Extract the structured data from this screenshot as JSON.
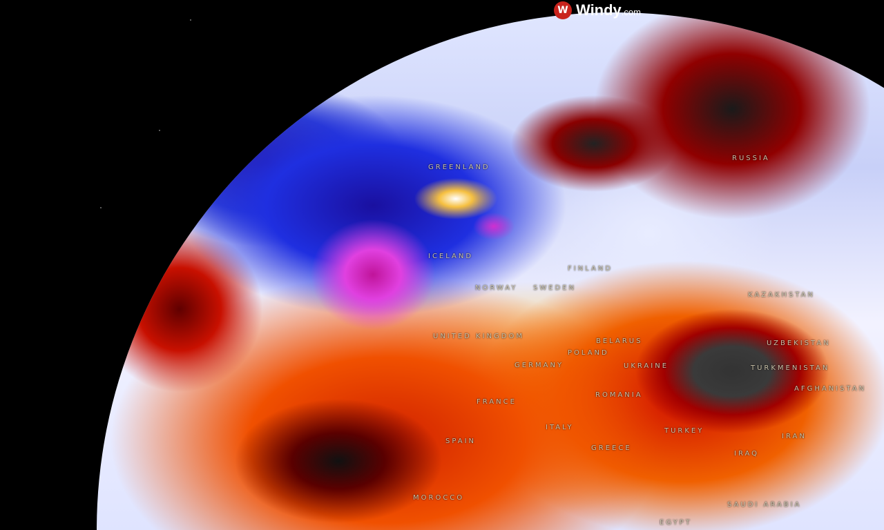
{
  "brand": {
    "name": "Windy",
    "suffix": ".com",
    "icon": "windy-logo-icon",
    "color": "#c9231d"
  },
  "labels": [
    "GREENLAND",
    "RUSSIA",
    "ICELAND",
    "FINLAND",
    "NORWAY",
    "SWEDEN",
    "UNITED KINGDOM",
    "GERMANY",
    "POLAND",
    "BELARUS",
    "UKRAINE",
    "KAZAKHSTAN",
    "UZBEKISTAN",
    "TURKMENISTAN",
    "AFGHANISTAN",
    "ROMANIA",
    "FRANCE",
    "SPAIN",
    "ITALY",
    "GREECE",
    "TURKEY",
    "IRAN",
    "IRAQ",
    "SAUDI ARABIA",
    "MOROCCO",
    "EGYPT"
  ]
}
